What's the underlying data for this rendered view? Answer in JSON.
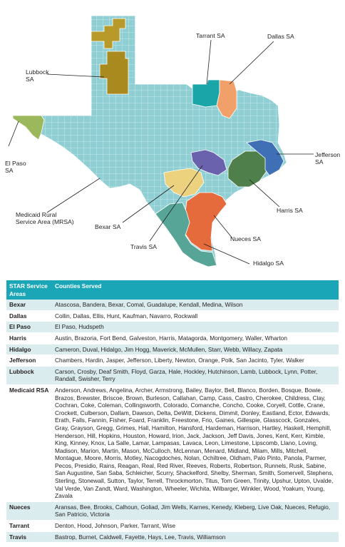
{
  "colors": {
    "base_region": "#8fcfd4",
    "county_border": "#ffffff",
    "lubbock": "#b89a2a",
    "lubbock_alt": "#a98a1e",
    "el_paso": "#9cb85c",
    "tarrant": "#1aa6a8",
    "dallas": "#f2a06a",
    "jefferson": "#3f6fb5",
    "harris": "#4f7f4a",
    "bexar": "#ecd27e",
    "travis": "#6a62ad",
    "nueces": "#e56a3c",
    "hidalgo": "#57a597",
    "callout_line": "#231f20",
    "table_header": "#1aa6b7",
    "table_stripe": "#dbecef"
  },
  "map": {
    "labels": {
      "tarrant": "Tarrant SA",
      "dallas": "Dallas SA",
      "lubbock_l1": "Lubbock",
      "lubbock_l2": "SA",
      "el_paso_l1": "El Paso",
      "el_paso_l2": "SA",
      "jefferson_l1": "Jefferson",
      "jefferson_l2": "SA",
      "mrsa_l1": "Medicaid Rural",
      "mrsa_l2": "Service Area (MRSA)",
      "harris": "Harris SA",
      "bexar": "Bexar SA",
      "nueces": "Nueces SA",
      "travis": "Travis SA",
      "hidalgo": "Hidalgo SA"
    }
  },
  "table": {
    "header": {
      "area_l1": "STAR Service",
      "area_l2": "Areas",
      "counties": "Counties Served"
    },
    "rows": [
      {
        "area": "Bexar",
        "counties": "Atascosa, Bandera, Bexar, Comal, Guadalupe, Kendall, Medina, Wilson"
      },
      {
        "area": "Dallas",
        "counties": "Collin, Dallas, Ellis, Hunt, Kaufman, Navarro, Rockwall"
      },
      {
        "area": "El Paso",
        "counties": "El Paso, Hudspeth"
      },
      {
        "area": "Harris",
        "counties": "Austin, Brazoria, Fort Bend, Galveston, Harris, Matagorda, Montgomery, Waller, Wharton"
      },
      {
        "area": "Hidalgo",
        "counties": "Cameron, Duval, Hidalgo, Jim Hogg, Maverick, McMullen, Starr, Webb, Willacy, Zapata"
      },
      {
        "area": "Jefferson",
        "counties": "Chambers, Hardin, Jasper, Jefferson, Liberty, Newton, Orange, Polk, San Jacinto, Tyler, Walker"
      },
      {
        "area": "Lubbock",
        "counties": "Carson, Crosby, Deaf Smith, Floyd, Garza, Hale, Hockley, Hutchinson, Lamb, Lubbock, Lynn, Potter, Randall, Swisher, Terry"
      },
      {
        "area": "Medicaid RSA",
        "counties": "Anderson, Andrews, Angelina, Archer, Armstrong, Bailey, Baylor, Bell, Blanco, Borden, Bosque, Bowie, Brazos, Brewster, Briscoe, Brown, Burleson, Callahan, Camp, Cass, Castro, Cherokee, Childress, Clay, Cochran, Coke, Coleman, Collingsworth, Colorado, Comanche, Concho, Cooke, Coryell, Cottle, Crane, Crockett, Culberson, Dallam, Dawson, Delta, DeWitt, Dickens, Dimmit, Donley, Eastland, Ector, Edwards, Erath, Falls, Fannin, Fisher, Foard, Franklin, Freestone, Frio, Gaines, Gillespie, Glasscock, Gonzales, Gray, Grayson, Gregg, Grimes, Hall, Hamilton, Hansford, Hardeman, Harrison, Hartley, Haskell, Hemphill, Henderson, Hill, Hopkins, Houston, Howard, Irion, Jack, Jackson, Jeff Davis, Jones, Kent, Kerr, Kimble, King, Kinney, Knox, La Salle, Lamar, Lampasas, Lavaca, Leon, Limestone, Lipscomb, Llano, Loving, Madison, Marion, Martin, Mason, McCulloch, McLennan, Menard, Midland, Milam, Mills, Mitchell, Montague, Moore, Morris, Motley, Nacogdoches, Nolan, Ochiltree, Oldham, Palo Pinto, Panola, Parmer, Pecos, Presidio, Rains, Reagan, Real, Red River, Reeves, Roberts, Robertson, Runnels, Rusk, Sabine, San Augustine, San Saba, Schleicher, Scurry, Shackelford, Shelby, Sherman, Smith, Somervell, Stephens, Sterling, Stonewall, Sutton, Taylor, Terrell, Throckmorton, Titus, Tom Green, Trinity, Upshur, Upton, Uvalde, Val Verde, Van Zandt, Ward, Washington, Wheeler, Wichita, Wilbarger, Winkler, Wood, Yoakum, Young, Zavala"
      },
      {
        "area": "Nueces",
        "counties": "Aransas, Bee, Brooks, Calhoun, Goliad, Jim Wells, Karnes, Kenedy, Kleberg, Live Oak, Nueces, Refugio, San Patricio, Victoria"
      },
      {
        "area": "Tarrant",
        "counties": "Denton, Hood, Johnson, Parker, Tarrant, Wise"
      },
      {
        "area": "Travis",
        "counties": "Bastrop, Burnet, Caldwell, Fayette, Hays, Lee, Travis, Williamson"
      }
    ]
  }
}
